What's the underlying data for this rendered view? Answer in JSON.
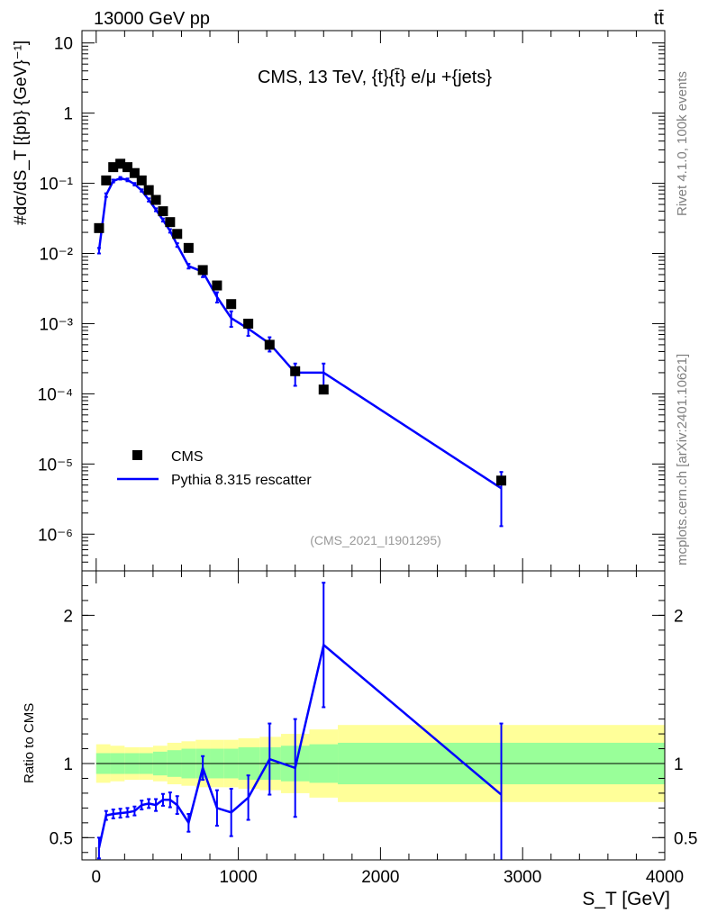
{
  "header": {
    "energy_label": "13000 GeV pp",
    "process_label": "tt̄"
  },
  "side_labels": {
    "rivet": "Rivet 4.1.0,  100k events",
    "source": "mcplots.cern.ch [arXiv:2401.10621]"
  },
  "chart_data": [
    {
      "type": "scatter",
      "panel": "main",
      "title": "CMS, 13 TeV, {t}{t̄} e/μ +{jets}",
      "analysis_tag": "(CMS_2021_I1901295)",
      "ylabel": "#dσ/dS_T [{pb} {GeV}⁻¹]",
      "yscale": "log",
      "ylim": [
        3e-07,
        15
      ],
      "xlim": [
        -100,
        4000
      ],
      "y_tick_labels": [
        "10",
        "1",
        "10⁻¹",
        "10⁻²",
        "10⁻³",
        "10⁻⁴",
        "10⁻⁵",
        "10⁻⁶"
      ],
      "legend": {
        "position": "bottom-left",
        "entries": [
          "CMS",
          "Pythia 8.315 rescatter"
        ]
      },
      "series": [
        {
          "name": "CMS",
          "style": "markers",
          "color": "#000000",
          "points": [
            [
              20,
              0.023
            ],
            [
              70,
              0.11
            ],
            [
              120,
              0.17
            ],
            [
              170,
              0.19
            ],
            [
              220,
              0.17
            ],
            [
              270,
              0.14
            ],
            [
              320,
              0.11
            ],
            [
              370,
              0.08
            ],
            [
              420,
              0.058
            ],
            [
              470,
              0.04
            ],
            [
              520,
              0.028
            ],
            [
              570,
              0.019
            ],
            [
              650,
              0.012
            ],
            [
              750,
              0.0058
            ],
            [
              850,
              0.0035
            ],
            [
              950,
              0.0019
            ],
            [
              1070,
              0.001
            ],
            [
              1220,
              0.0005
            ],
            [
              1400,
              0.00021
            ],
            [
              1600,
              0.000115
            ],
            [
              2850,
              5.8e-06
            ]
          ]
        },
        {
          "name": "Pythia 8.315 rescatter",
          "style": "line",
          "color": "#0000ff",
          "points": [
            [
              20,
              0.011
            ],
            [
              70,
              0.068
            ],
            [
              120,
              0.108
            ],
            [
              170,
              0.118
            ],
            [
              220,
              0.112
            ],
            [
              270,
              0.097
            ],
            [
              320,
              0.079
            ],
            [
              370,
              0.058
            ],
            [
              420,
              0.042
            ],
            [
              470,
              0.03
            ],
            [
              520,
              0.021
            ],
            [
              570,
              0.0132
            ],
            [
              650,
              0.0066
            ],
            [
              750,
              0.0055
            ],
            [
              850,
              0.0024
            ],
            [
              950,
              0.0012
            ],
            [
              1070,
              0.00085
            ],
            [
              1220,
              0.00052
            ],
            [
              1400,
              0.0002
            ],
            [
              1600,
              0.0002
            ],
            [
              2850,
              4.5e-06
            ]
          ],
          "errors": [
            0.001,
            0.004,
            0.005,
            0.005,
            0.005,
            0.004,
            0.003,
            0.003,
            0.002,
            0.0015,
            0.0012,
            0.0008,
            0.0005,
            0.0009,
            0.0004,
            0.0003,
            0.00018,
            0.00012,
            7e-05,
            7e-05,
            3.2e-06
          ]
        }
      ]
    },
    {
      "type": "line",
      "panel": "ratio",
      "ylabel": "Ratio to CMS",
      "xlabel": "S_T [GeV]",
      "ylim": [
        0.35,
        2.3
      ],
      "xlim": [
        -100,
        4000
      ],
      "y_ticks": [
        0.5,
        1,
        2
      ],
      "y_tick_labels": [
        "0.5",
        "1",
        "2"
      ],
      "x_ticks": [
        0,
        1000,
        2000,
        3000,
        4000
      ],
      "x_tick_labels": [
        "0",
        "1000",
        "2000",
        "3000",
        "4000"
      ],
      "reference": 1.0,
      "band_edges": [
        0,
        100,
        200,
        300,
        400,
        500,
        600,
        700,
        800,
        900,
        1000,
        1150,
        1300,
        1500,
        1700,
        4000
      ],
      "band_inner_halfwidth": [
        0.07,
        0.07,
        0.07,
        0.07,
        0.08,
        0.09,
        0.1,
        0.1,
        0.1,
        0.1,
        0.11,
        0.11,
        0.12,
        0.13,
        0.14
      ],
      "band_outer_halfwidth": [
        0.13,
        0.12,
        0.11,
        0.11,
        0.12,
        0.14,
        0.15,
        0.16,
        0.16,
        0.16,
        0.17,
        0.18,
        0.2,
        0.23,
        0.26
      ],
      "band_colors": {
        "inner": "#99ff99",
        "outer": "#ffff99"
      },
      "series": [
        {
          "name": "Pythia 8.315 rescatter",
          "color": "#0000ff",
          "x": [
            20,
            70,
            120,
            170,
            220,
            270,
            320,
            370,
            420,
            470,
            520,
            570,
            650,
            750,
            850,
            950,
            1070,
            1220,
            1400,
            1600,
            2850
          ],
          "values": [
            0.43,
            0.65,
            0.66,
            0.665,
            0.67,
            0.68,
            0.72,
            0.73,
            0.72,
            0.755,
            0.755,
            0.72,
            0.6,
            0.97,
            0.7,
            0.67,
            0.77,
            1.03,
            0.97,
            1.8,
            0.79
          ],
          "errors": [
            0.07,
            0.03,
            0.03,
            0.03,
            0.03,
            0.03,
            0.03,
            0.03,
            0.04,
            0.04,
            0.05,
            0.06,
            0.06,
            0.08,
            0.12,
            0.16,
            0.15,
            0.24,
            0.33,
            0.42,
            0.48
          ]
        }
      ]
    }
  ]
}
